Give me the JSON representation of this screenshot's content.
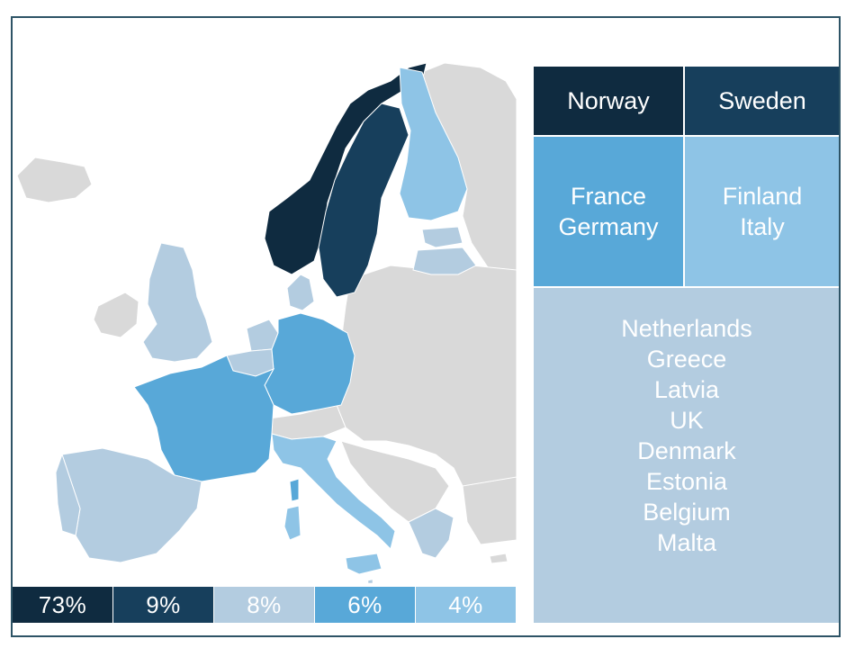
{
  "colors": {
    "tier_73": "#0f2b40",
    "tier_9": "#173f5c",
    "tier_8": "#b3cce0",
    "tier_6": "#58a8d8",
    "tier_4": "#8ec4e6",
    "other_land": "#d9d9d9",
    "border": "#2e5466"
  },
  "legend": [
    {
      "label": "73%",
      "color": "#0f2b40"
    },
    {
      "label": "9%",
      "color": "#173f5c"
    },
    {
      "label": "8%",
      "color": "#b3cce0"
    },
    {
      "label": "6%",
      "color": "#58a8d8"
    },
    {
      "label": "4%",
      "color": "#8ec4e6"
    }
  ],
  "treemap": {
    "norway": {
      "lines": [
        "Norway"
      ],
      "color": "#0f2b40"
    },
    "sweden": {
      "lines": [
        "Sweden"
      ],
      "color": "#173f5c"
    },
    "france_germany": {
      "lines": [
        "France",
        "Germany"
      ],
      "color": "#58a8d8"
    },
    "finland_italy": {
      "lines": [
        "Finland",
        "Italy"
      ],
      "color": "#8ec4e6"
    },
    "others": {
      "lines": [
        "Netherlands",
        "Greece",
        "Latvia",
        "UK",
        "Denmark",
        "Estonia",
        "Belgium",
        "Malta"
      ],
      "color": "#b3cce0"
    }
  },
  "map_regions": {
    "norway": "#0f2b40",
    "sweden": "#173f5c",
    "france": "#58a8d8",
    "germany": "#58a8d8",
    "finland": "#8ec4e6",
    "italy": "#8ec4e6",
    "uk": "#b3cce0",
    "netherlands": "#b3cce0",
    "belgium": "#b3cce0",
    "denmark": "#b3cce0",
    "latvia": "#b3cce0",
    "estonia": "#b3cce0",
    "greece": "#b3cce0",
    "spain": "#b3cce0",
    "portugal": "#b3cce0",
    "malta": "#b3cce0",
    "sardinia": "#8ec4e6",
    "sicily": "#8ec4e6",
    "corsica": "#58a8d8"
  }
}
